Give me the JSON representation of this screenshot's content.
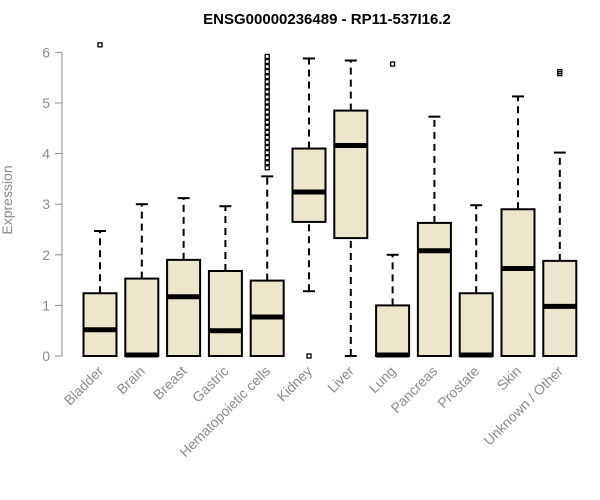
{
  "chart_data": {
    "type": "box",
    "title": "ENSG00000236489 - RP11-537I16.2",
    "ylabel": "Expression",
    "xlabel": "",
    "ylim": [
      0,
      6.2
    ],
    "yticks": [
      0,
      1,
      2,
      3,
      4,
      5,
      6
    ],
    "ytick_labels": [
      "0",
      "1",
      "2",
      "3",
      "4",
      "5",
      "6"
    ],
    "box_fill": "#ede6cc",
    "box_stroke": "#000000",
    "axis_color": "#8c8c8c",
    "categories": [
      "Bladder",
      "Brain",
      "Breast",
      "Gastric",
      "Hematopoietic cells",
      "Kidney",
      "Liver",
      "Lung",
      "Pancreas",
      "Prostate",
      "Skin",
      "Unknown / Other"
    ],
    "boxes": [
      {
        "whisker_low": 0,
        "q1": 0,
        "median": 0.52,
        "q3": 1.24,
        "whisker_high": 2.47,
        "outliers": [
          6.15
        ]
      },
      {
        "whisker_low": 0,
        "q1": 0,
        "median": 0.02,
        "q3": 1.53,
        "whisker_high": 3.0,
        "outliers": []
      },
      {
        "whisker_low": 0,
        "q1": 0,
        "median": 1.17,
        "q3": 1.9,
        "whisker_high": 3.12,
        "outliers": []
      },
      {
        "whisker_low": 0,
        "q1": 0,
        "median": 0.5,
        "q3": 1.68,
        "whisker_high": 2.96,
        "outliers": []
      },
      {
        "whisker_low": 0,
        "q1": 0,
        "median": 0.77,
        "q3": 1.49,
        "whisker_high": 3.55,
        "outliers": [
          3.72,
          3.82,
          3.92,
          4.02,
          4.12,
          4.22,
          4.32,
          4.42,
          4.52,
          4.62,
          4.72,
          4.82,
          4.92,
          5.02,
          5.12,
          5.22,
          5.32,
          5.42,
          5.52,
          5.62,
          5.72,
          5.82,
          5.92
        ]
      },
      {
        "whisker_low": 1.28,
        "q1": 2.65,
        "median": 3.24,
        "q3": 4.1,
        "whisker_high": 5.88,
        "outliers": [
          0.0
        ]
      },
      {
        "whisker_low": 0,
        "q1": 2.33,
        "median": 4.16,
        "q3": 4.85,
        "whisker_high": 5.84,
        "outliers": []
      },
      {
        "whisker_low": 0,
        "q1": 0,
        "median": 0.02,
        "q3": 1.0,
        "whisker_high": 2.0,
        "outliers": [
          5.77
        ]
      },
      {
        "whisker_low": 0,
        "q1": 0,
        "median": 2.08,
        "q3": 2.63,
        "whisker_high": 4.73,
        "outliers": []
      },
      {
        "whisker_low": 0,
        "q1": 0,
        "median": 0.02,
        "q3": 1.24,
        "whisker_high": 2.98,
        "outliers": []
      },
      {
        "whisker_low": 0,
        "q1": 0,
        "median": 1.73,
        "q3": 2.9,
        "whisker_high": 5.13,
        "outliers": []
      },
      {
        "whisker_low": 0,
        "q1": 0,
        "median": 0.98,
        "q3": 1.88,
        "whisker_high": 4.02,
        "outliers": [
          5.58,
          5.62
        ]
      }
    ]
  }
}
